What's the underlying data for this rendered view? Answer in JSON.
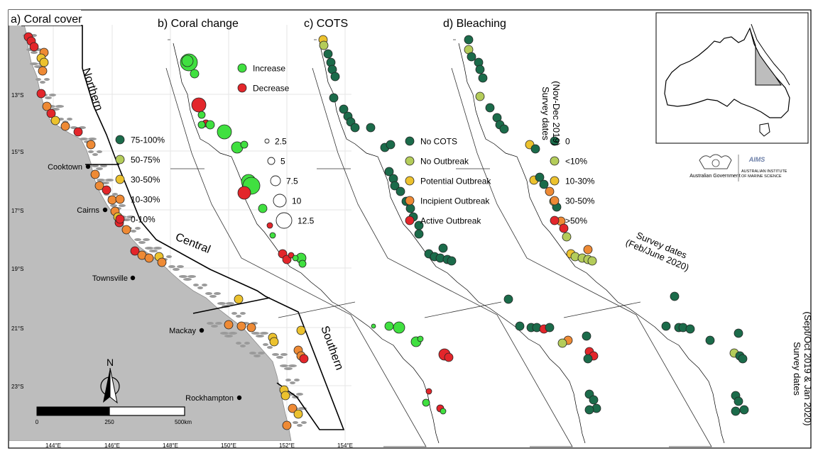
{
  "panels": {
    "a": "a) Coral cover",
    "b": "b) Coral change",
    "c": "c) COTS",
    "d": "d) Bleaching"
  },
  "regions": {
    "northern": "Northern",
    "central": "Central",
    "southern": "Southern"
  },
  "cities": [
    "Cooktown",
    "Cairns",
    "Townsville",
    "Mackay",
    "Rockhampton"
  ],
  "latitudes": [
    "13°S",
    "15°S",
    "17°S",
    "19°S",
    "21°S",
    "23°S"
  ],
  "longitudes": [
    "144°E",
    "146°E",
    "148°E",
    "150°E",
    "152°E",
    "154°E"
  ],
  "scalebar": {
    "ticks": [
      "0",
      "250",
      "500km"
    ]
  },
  "north_arrow": "N",
  "legend_cover": [
    {
      "label": "75-100%",
      "color": "#1b6b4a"
    },
    {
      "label": "50-75%",
      "color": "#b4cc5a"
    },
    {
      "label": "30-50%",
      "color": "#ecc22e"
    },
    {
      "label": "10-30%",
      "color": "#ee8a35"
    },
    {
      "label": "0-10%",
      "color": "#e3262b"
    }
  ],
  "legend_change": [
    {
      "label": "Increase",
      "color": "#40e040"
    },
    {
      "label": "Decrease",
      "color": "#e3262b"
    }
  ],
  "legend_size": [
    "2.5",
    "5",
    "7.5",
    "10",
    "12.5"
  ],
  "legend_cots": [
    {
      "label": "No COTS",
      "color": "#1b6b4a"
    },
    {
      "label": "No Outbreak",
      "color": "#b4cc5a"
    },
    {
      "label": "Potential Outbreak",
      "color": "#ecc22e"
    },
    {
      "label": "Incipient Outbreak",
      "color": "#ee8a35"
    },
    {
      "label": "Active Outbreak",
      "color": "#e3262b"
    }
  ],
  "legend_bleach": [
    {
      "label": "0",
      "color": "#1b6b4a"
    },
    {
      "label": "<10%",
      "color": "#b4cc5a"
    },
    {
      "label": "10-30%",
      "color": "#ecc22e"
    },
    {
      "label": "30-50%",
      "color": "#ee8a35"
    },
    {
      "label": ">50%",
      "color": "#e3262b"
    }
  ],
  "survey_dates": {
    "north": [
      "Survey dates",
      "(Nov-Dec 2019)"
    ],
    "central": [
      "Survey dates",
      "(Feb/June 2020)"
    ],
    "south": [
      "Survey dates",
      "(Sept/Oct 2019 & Jan 2020)"
    ]
  },
  "logos": {
    "gov": "Australian Government",
    "aims": [
      "AUSTRALIAN INSTITUTE",
      "OF MARINE SCIENCE"
    ],
    "aims_mark": "AIMS"
  }
}
